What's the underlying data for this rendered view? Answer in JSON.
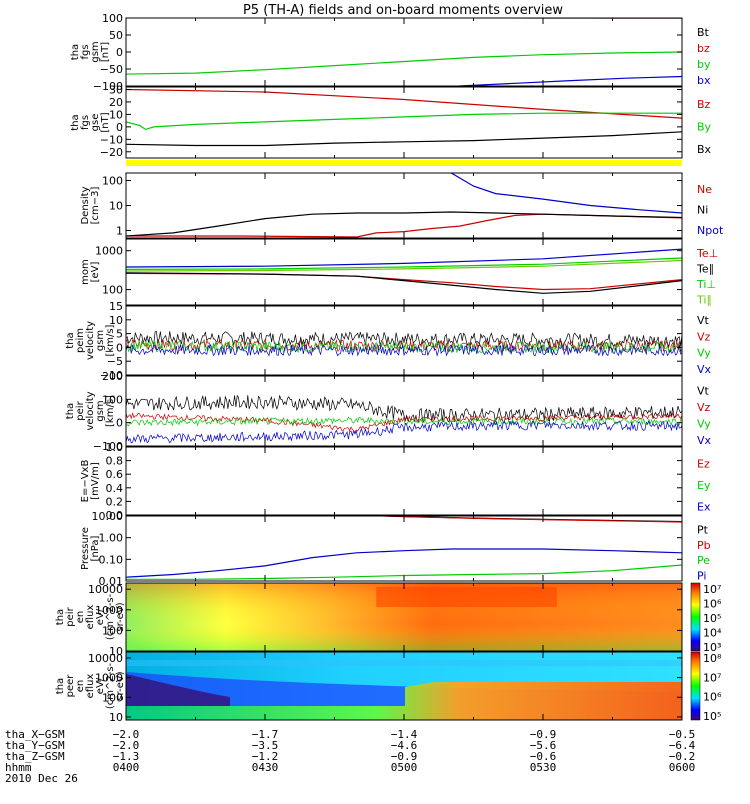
{
  "title": "P5 (TH-A) fields and on-board moments overview",
  "chart_data": [
    {
      "panel": "fgs_gsm",
      "type": "line",
      "ylabel": [
        "tha",
        "fgs",
        "gsm",
        "[nT]"
      ],
      "ylim": [
        -100,
        100
      ],
      "ticks": [
        {
          "v": 100,
          "t": "100"
        },
        {
          "v": 50,
          "t": "50"
        },
        {
          "v": 0,
          "t": "0"
        },
        {
          "v": -50,
          "t": "−50"
        },
        {
          "v": -100,
          "t": "−100"
        }
      ],
      "series": [
        {
          "name": "Bt",
          "color": "#000000",
          "x": [
            4.75,
            5.0,
            5.25,
            5.5,
            5.75,
            6.0
          ],
          "y": [
            102,
            101,
            101,
            100,
            100,
            100
          ]
        },
        {
          "name": "bz",
          "color": "#cc0000",
          "x": [
            4.75,
            5.0,
            5.25,
            5.5,
            5.75,
            6.0
          ],
          "y": [
            103,
            102,
            101,
            101,
            100,
            100
          ]
        },
        {
          "name": "by",
          "color": "#00cc00",
          "x": [
            4.0,
            4.25,
            4.5,
            4.75,
            5.0,
            5.25,
            5.5,
            5.75,
            6.0
          ],
          "y": [
            -65,
            -62,
            -52,
            -40,
            -28,
            -16,
            -8,
            -3,
            0
          ]
        },
        {
          "name": "bx",
          "color": "#0000cc",
          "x": [
            5.2,
            5.4,
            5.6,
            5.8,
            6.0
          ],
          "y": [
            -100,
            -92,
            -84,
            -77,
            -72
          ]
        }
      ]
    },
    {
      "panel": "fgs_gse",
      "type": "line",
      "ylabel": [
        "tha",
        "fgs",
        "gse",
        "[nT]"
      ],
      "ylim": [
        -25,
        32
      ],
      "ticks": [
        {
          "v": 30,
          "t": "30"
        },
        {
          "v": 20,
          "t": "20"
        },
        {
          "v": 10,
          "t": "10"
        },
        {
          "v": 0,
          "t": "0"
        },
        {
          "v": -10,
          "t": "−10"
        },
        {
          "v": -20,
          "t": "−20"
        }
      ],
      "series": [
        {
          "name": "Bz",
          "color": "#cc0000",
          "x": [
            4.0,
            4.5,
            5.0,
            5.5,
            6.0
          ],
          "y": [
            30,
            28,
            22,
            14,
            7
          ]
        },
        {
          "name": "By",
          "color": "#00cc00",
          "x": [
            4.0,
            4.05,
            4.07,
            4.1,
            4.25,
            4.5,
            4.75,
            5.0,
            5.25,
            5.5,
            5.75,
            6.0
          ],
          "y": [
            4,
            1,
            -2,
            0,
            2,
            4,
            6,
            8,
            10,
            11,
            11,
            11
          ]
        },
        {
          "name": "Bx",
          "color": "#000000",
          "x": [
            4.0,
            4.25,
            4.5,
            4.75,
            5.0,
            5.25,
            5.5,
            5.75,
            6.0
          ],
          "y": [
            -14,
            -15,
            -15,
            -13,
            -12,
            -11,
            -9,
            -7,
            -4
          ]
        }
      ]
    },
    {
      "panel": "density",
      "type": "line",
      "log": true,
      "ylabel": [
        "Density",
        "[cm−3]"
      ],
      "ylim": [
        0.5,
        200
      ],
      "ticks": [
        {
          "v": 100,
          "t": "100"
        },
        {
          "v": 10,
          "t": "10"
        },
        {
          "v": 1,
          "t": "1"
        }
      ],
      "series": [
        {
          "name": "Ne",
          "color": "#cc0000",
          "x": [
            4.0,
            4.4,
            4.83,
            4.9,
            5.0,
            5.1,
            5.2,
            5.3,
            5.4,
            5.5,
            5.75,
            6.0
          ],
          "y": [
            0.6,
            0.6,
            0.55,
            0.8,
            0.9,
            1.2,
            1.5,
            2.5,
            4,
            4.5,
            3.8,
            3.2
          ]
        },
        {
          "name": "Ni",
          "color": "#000000",
          "x": [
            4.0,
            4.17,
            4.33,
            4.5,
            4.67,
            4.83,
            5.0,
            5.17,
            5.33,
            5.5,
            5.75,
            6.0
          ],
          "y": [
            0.6,
            0.8,
            1.5,
            3,
            4.5,
            5,
            5,
            5.5,
            5,
            4.5,
            3.8,
            3.3
          ]
        },
        {
          "name": "Npot",
          "color": "#0000cc",
          "x": [
            5.17,
            5.25,
            5.33,
            5.5,
            5.67,
            5.83,
            6.0
          ],
          "y": [
            200,
            60,
            30,
            18,
            10,
            7,
            5
          ]
        }
      ]
    },
    {
      "panel": "temperature",
      "type": "line",
      "log": true,
      "ylabel": [
        "mom",
        "[eV]"
      ],
      "ylim": [
        40,
        2000
      ],
      "ticks": [
        {
          "v": 1000,
          "t": "1000"
        },
        {
          "v": 100,
          "t": "100"
        }
      ],
      "series": [
        {
          "name": "Te⊥",
          "color": "#cc0000",
          "x": [
            4.0,
            4.5,
            4.83,
            5.0,
            5.17,
            5.33,
            5.5,
            5.67,
            6.0
          ],
          "y": [
            260,
            250,
            220,
            180,
            150,
            120,
            100,
            105,
            180
          ]
        },
        {
          "name": "Te∥",
          "color": "#000000",
          "x": [
            4.0,
            4.5,
            4.83,
            5.0,
            5.17,
            5.33,
            5.5,
            5.67,
            6.0
          ],
          "y": [
            270,
            250,
            220,
            170,
            130,
            100,
            80,
            90,
            170
          ]
        },
        {
          "name": "Ti⊥",
          "color": "#00cc00",
          "x": [
            4.0,
            4.5,
            5.0,
            5.5,
            6.0
          ],
          "y": [
            330,
            340,
            380,
            450,
            650
          ]
        },
        {
          "name": "Ti∥",
          "color": "#66cc00",
          "x": [
            4.0,
            4.5,
            5.0,
            5.5,
            6.0
          ],
          "y": [
            300,
            310,
            340,
            400,
            560
          ]
        },
        {
          "name": "Tblue",
          "color": "#0000cc",
          "x": [
            4.0,
            4.5,
            5.0,
            5.5,
            6.0
          ],
          "y": [
            380,
            400,
            470,
            620,
            1100
          ]
        }
      ]
    },
    {
      "panel": "peim_velocity",
      "type": "line",
      "noisy": true,
      "ylabel": [
        "tha",
        "peim",
        "velocity",
        "gsm",
        "[km/s]"
      ],
      "ylim": [
        -10,
        15
      ],
      "ticks": [
        {
          "v": 15,
          "t": "15"
        },
        {
          "v": 10,
          "t": "10"
        },
        {
          "v": 5,
          "t": "5"
        },
        {
          "v": 0,
          "t": "0"
        },
        {
          "v": -5,
          "t": "−5"
        },
        {
          "v": -10,
          "t": "−10"
        }
      ],
      "series": [
        {
          "name": "Vt",
          "color": "#000000",
          "x": [
            4.0,
            5.0,
            6.0
          ],
          "y": [
            3.5,
            3,
            2.5
          ],
          "noise": 2.5
        },
        {
          "name": "Vz",
          "color": "#cc0000",
          "x": [
            4.0,
            5.0,
            6.0
          ],
          "y": [
            1,
            0.5,
            0.5
          ],
          "noise": 2
        },
        {
          "name": "Vy",
          "color": "#00cc00",
          "x": [
            4.0,
            5.0,
            6.0
          ],
          "y": [
            0.5,
            0,
            0
          ],
          "noise": 2
        },
        {
          "name": "Vx",
          "color": "#0000cc",
          "x": [
            4.0,
            5.0,
            6.0
          ],
          "y": [
            -1,
            -1,
            -1
          ],
          "noise": 2
        }
      ]
    },
    {
      "panel": "peir_velocity",
      "type": "line",
      "noisy": true,
      "ylabel": [
        "tha",
        "peir",
        "velocity",
        "gsm",
        "[km/s]"
      ],
      "ylim": [
        -100,
        200
      ],
      "ticks": [
        {
          "v": 200,
          "t": "200"
        },
        {
          "v": 100,
          "t": "100"
        },
        {
          "v": 0,
          "t": "0"
        },
        {
          "v": -100,
          "t": "−100"
        }
      ],
      "series": [
        {
          "name": "Vt",
          "color": "#000000",
          "x": [
            4.0,
            4.5,
            4.83,
            5.0,
            5.5,
            6.0
          ],
          "y": [
            80,
            90,
            75,
            30,
            35,
            45
          ],
          "noise": 30
        },
        {
          "name": "Vz",
          "color": "#cc0000",
          "x": [
            4.0,
            4.5,
            4.83,
            5.0,
            5.5,
            6.0
          ],
          "y": [
            30,
            10,
            -30,
            15,
            20,
            30
          ],
          "noise": 12
        },
        {
          "name": "Vy",
          "color": "#00cc00",
          "x": [
            4.0,
            4.5,
            4.83,
            5.0,
            5.5,
            6.0
          ],
          "y": [
            0,
            5,
            10,
            5,
            5,
            5
          ],
          "noise": 15
        },
        {
          "name": "Vx",
          "color": "#0000cc",
          "x": [
            4.0,
            4.5,
            4.83,
            5.0,
            5.5,
            6.0
          ],
          "y": [
            -70,
            -60,
            -50,
            -20,
            -10,
            -15
          ],
          "noise": 20
        }
      ]
    },
    {
      "panel": "efield",
      "type": "line",
      "ylabel": [
        "E=−VxB",
        "[mV/m]"
      ],
      "ylim": [
        0,
        1
      ],
      "ticks": [
        {
          "v": 1.0,
          "t": "1.0"
        },
        {
          "v": 0.8,
          "t": "0.8"
        },
        {
          "v": 0.6,
          "t": "0.6"
        },
        {
          "v": 0.4,
          "t": "0.4"
        },
        {
          "v": 0.2,
          "t": "0.2"
        },
        {
          "v": 0.0,
          "t": "0.0"
        }
      ],
      "series": [
        {
          "name": "Ez",
          "color": "#cc0000",
          "x": [],
          "y": []
        },
        {
          "name": "Ey",
          "color": "#00cc00",
          "x": [],
          "y": []
        },
        {
          "name": "Ex",
          "color": "#0000cc",
          "x": [],
          "y": []
        }
      ]
    },
    {
      "panel": "pressure",
      "type": "line",
      "log": true,
      "ylabel": [
        "Pressure",
        "[nPa]"
      ],
      "ylim": [
        0.01,
        10
      ],
      "ticks": [
        {
          "v": 10,
          "t": "10.00"
        },
        {
          "v": 1,
          "t": "1.00"
        },
        {
          "v": 0.1,
          "t": "0.10"
        },
        {
          "v": 0.01,
          "t": "0.01"
        }
      ],
      "series": [
        {
          "name": "Pt",
          "color": "#000000",
          "x": [
            4.75,
            5.0,
            5.25,
            5.5,
            5.75,
            6.0
          ],
          "y": [
            12,
            9.5,
            8,
            7,
            6.2,
            5.5
          ]
        },
        {
          "name": "Pb",
          "color": "#cc0000",
          "x": [
            4.75,
            5.0,
            5.25,
            5.5,
            5.75,
            6.0
          ],
          "y": [
            12,
            9.3,
            7.8,
            6.8,
            6,
            5.3
          ]
        },
        {
          "name": "Pe",
          "color": "#00cc00",
          "x": [
            4.0,
            4.25,
            4.5,
            4.75,
            5.0,
            5.25,
            5.5,
            5.75,
            6.0
          ],
          "y": [
            0.012,
            0.012,
            0.013,
            0.015,
            0.018,
            0.02,
            0.022,
            0.03,
            0.055
          ]
        },
        {
          "name": "Pi",
          "color": "#0000cc",
          "x": [
            4.0,
            4.17,
            4.33,
            4.5,
            4.67,
            4.83,
            5.0,
            5.17,
            5.33,
            5.5,
            5.75,
            6.0
          ],
          "y": [
            0.015,
            0.02,
            0.03,
            0.05,
            0.12,
            0.2,
            0.25,
            0.3,
            0.3,
            0.3,
            0.25,
            0.2
          ]
        }
      ]
    },
    {
      "panel": "peir_eflux",
      "type": "heatmap",
      "log": true,
      "ylabel": [
        "tha",
        "peir",
        "en",
        "eflux",
        "eV/",
        "(cm^2-s-",
        "sr-eV)"
      ],
      "ylim": [
        10,
        20000
      ],
      "ticks": [
        {
          "v": 10000,
          "t": "10000"
        },
        {
          "v": 1000,
          "t": "1000"
        },
        {
          "v": 100,
          "t": "100"
        },
        {
          "v": 10,
          "t": "10"
        }
      ],
      "colorbar": {
        "labels": [
          "10^7",
          "10^6",
          "10^5",
          "10^4",
          "10^3"
        ]
      }
    },
    {
      "panel": "peer_eflux",
      "type": "heatmap",
      "log": true,
      "ylabel": [
        "tha",
        "peer",
        "en",
        "eflux",
        "eV/",
        "(cm^2-s-",
        "sr-eV)"
      ],
      "ylim": [
        7,
        20000
      ],
      "ticks": [
        {
          "v": 10000,
          "t": "10000"
        },
        {
          "v": 1000,
          "t": "1000"
        },
        {
          "v": 100,
          "t": "100"
        },
        {
          "v": 10,
          "t": "10"
        }
      ],
      "colorbar": {
        "labels": [
          "10^8",
          "10^7",
          "10^6",
          "10^5"
        ]
      }
    }
  ],
  "footer": {
    "rows": [
      {
        "label": "tha_X−GSM",
        "values": [
          "−2.0",
          "−1.7",
          "−1.4",
          "−0.9",
          "−0.5"
        ]
      },
      {
        "label": "tha_Y−GSM",
        "values": [
          "−2.0",
          "−3.5",
          "−4.6",
          "−5.6",
          "−6.4"
        ]
      },
      {
        "label": "tha_Z−GSM",
        "values": [
          "−1.3",
          "−1.2",
          "−0.9",
          "−0.6",
          "−0.2"
        ]
      },
      {
        "label": "hhmm",
        "values": [
          "0400",
          "0430",
          "0500",
          "0530",
          "0600"
        ]
      }
    ],
    "date": "2010 Dec 26"
  },
  "xrange": [
    4.0,
    6.0
  ]
}
